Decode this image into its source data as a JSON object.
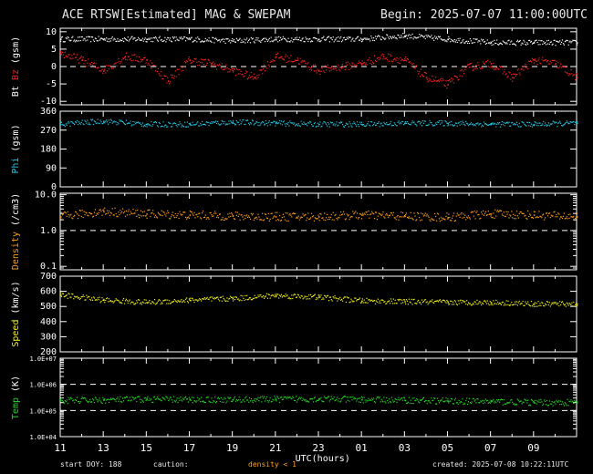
{
  "header": {
    "title": "ACE RTSW[Estimated] MAG & SWEPAM",
    "begin": "Begin: 2025-07-07 11:00:00UTC"
  },
  "footer": {
    "start_doy": "start DOY: 188",
    "caution_label": "caution:",
    "caution_value": "density < 1",
    "created": "created: 2025-07-08 10:22:11UTC"
  },
  "colors": {
    "background": "#000000",
    "axes": "#ffffff",
    "bt": "#ffffff",
    "bz": "#ff2020",
    "phi": "#22c8e6",
    "density": "#ff9e1a",
    "speed": "#f2f21a",
    "temp": "#22dd22",
    "caution": "#ff9e1a"
  },
  "chart_data": [
    {
      "type": "scatter",
      "panel": "magnetic field",
      "ylabel_parts": [
        {
          "text": "Bt",
          "color": "#ffffff"
        },
        {
          "text": "Bz",
          "color": "#ff2020"
        },
        {
          "text": "(gsm)",
          "color": "#ffffff"
        }
      ],
      "yticks": [
        10,
        5,
        0,
        -5,
        -10
      ],
      "ylim": [
        -11,
        11
      ],
      "reference_lines": [
        0
      ],
      "series": [
        {
          "name": "Bt",
          "color": "#ffffff",
          "x_hours": [
            0,
            2,
            4,
            6,
            8,
            10,
            12,
            14,
            16,
            18,
            20,
            22,
            24
          ],
          "y": [
            8,
            8,
            8,
            8,
            7.5,
            8,
            8,
            8,
            9,
            8,
            7,
            7,
            7
          ]
        },
        {
          "name": "Bz",
          "color": "#ff2020",
          "x_hours": [
            0,
            1,
            2,
            3,
            4,
            5,
            6,
            7,
            8,
            9,
            10,
            11,
            12,
            13,
            14,
            15,
            16,
            17,
            18,
            19,
            20,
            21,
            22,
            23,
            24
          ],
          "y": [
            4,
            2,
            -1,
            3,
            2,
            -4,
            2,
            1,
            -1,
            -3,
            3,
            2,
            -1,
            0,
            1,
            3,
            2,
            -3,
            -5,
            0,
            1,
            -3,
            2,
            1,
            -3
          ]
        }
      ]
    },
    {
      "type": "scatter",
      "panel": "phi",
      "ylabel_parts": [
        {
          "text": "Phi",
          "color": "#22c8e6"
        },
        {
          "text": "(gsm)",
          "color": "#ffffff"
        }
      ],
      "yticks": [
        360,
        270,
        180,
        90,
        0
      ],
      "ylim": [
        0,
        360
      ],
      "series": [
        {
          "name": "Phi",
          "color": "#22c8e6",
          "x_hours": [
            0,
            2,
            4,
            6,
            8,
            10,
            12,
            14,
            16,
            18,
            20,
            22,
            24
          ],
          "y": [
            300,
            315,
            300,
            300,
            310,
            305,
            300,
            300,
            305,
            305,
            300,
            300,
            305
          ]
        }
      ]
    },
    {
      "type": "scatter",
      "panel": "density",
      "ylabel_parts": [
        {
          "text": "Density",
          "color": "#ff9e1a"
        },
        {
          "text": "(/cm3)",
          "color": "#ffffff"
        }
      ],
      "yscale": "log",
      "yticks": [
        10.0,
        1.0,
        0.1
      ],
      "ytick_labels": [
        "10.0",
        "1.0",
        "0.1"
      ],
      "ylim": [
        0.08,
        11
      ],
      "reference_lines": [
        1.0
      ],
      "series": [
        {
          "name": "Density",
          "color": "#ff9e1a",
          "x_hours": [
            0,
            2,
            4,
            6,
            8,
            10,
            12,
            14,
            16,
            18,
            20,
            22,
            24
          ],
          "y": [
            2.5,
            3.5,
            3,
            2.8,
            2.6,
            2.5,
            2.5,
            2.8,
            2.6,
            2.4,
            3,
            2.8,
            2.5
          ]
        }
      ]
    },
    {
      "type": "scatter",
      "panel": "speed",
      "ylabel_parts": [
        {
          "text": "Speed",
          "color": "#f2f21a"
        },
        {
          "text": "(km/s)",
          "color": "#ffffff"
        }
      ],
      "yticks": [
        700,
        600,
        500,
        400,
        300,
        200
      ],
      "ylim": [
        200,
        700
      ],
      "series": [
        {
          "name": "Speed",
          "color": "#f2f21a",
          "x_hours": [
            0,
            2,
            4,
            6,
            8,
            10,
            12,
            14,
            16,
            18,
            20,
            22,
            24
          ],
          "y": [
            580,
            545,
            530,
            545,
            555,
            575,
            565,
            540,
            535,
            530,
            530,
            520,
            520
          ]
        }
      ]
    },
    {
      "type": "scatter",
      "panel": "temperature",
      "ylabel_parts": [
        {
          "text": "Temp",
          "color": "#22dd22"
        },
        {
          "text": "(K)",
          "color": "#ffffff"
        }
      ],
      "yscale": "log",
      "yticks": [
        10000000,
        1000000,
        100000,
        10000
      ],
      "ytick_labels": [
        "1.0E+07",
        "1.0E+06",
        "1.0E+05",
        "1.0E+04"
      ],
      "ylim": [
        10000,
        10000000
      ],
      "reference_lines": [
        1000000,
        100000
      ],
      "series": [
        {
          "name": "Temp",
          "color": "#22dd22",
          "x_hours": [
            0,
            2,
            4,
            6,
            8,
            10,
            12,
            14,
            16,
            18,
            20,
            22,
            24
          ],
          "y": [
            250000,
            260000,
            280000,
            270000,
            270000,
            280000,
            290000,
            270000,
            260000,
            240000,
            230000,
            210000,
            210000
          ]
        }
      ]
    }
  ],
  "x_axis": {
    "label": "UTC(hours)",
    "ticks": [
      "11",
      "13",
      "15",
      "17",
      "19",
      "21",
      "23",
      "01",
      "03",
      "05",
      "07",
      "09"
    ],
    "tick_hours": [
      0,
      2,
      4,
      6,
      8,
      10,
      12,
      14,
      16,
      18,
      20,
      22
    ],
    "xlim_hours": [
      0,
      24
    ]
  }
}
